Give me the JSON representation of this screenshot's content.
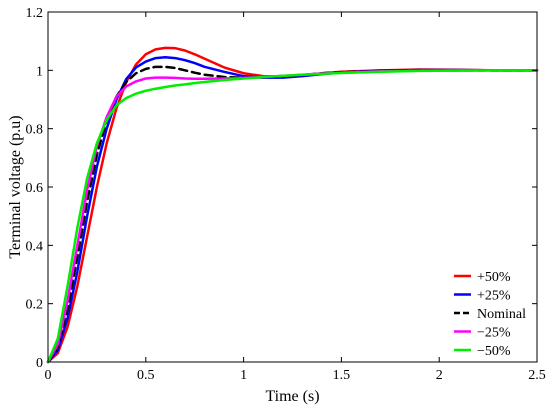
{
  "chart_data": {
    "type": "line",
    "title": "",
    "xlabel": "Time (s)",
    "ylabel": "Terminal voltage (p.u)",
    "xlim": [
      0,
      2.5
    ],
    "ylim": [
      0,
      1.2
    ],
    "xticks": [
      0,
      0.5,
      1,
      1.5,
      2,
      2.5
    ],
    "xtick_labels": [
      "0",
      "0.5",
      "1",
      "1.5",
      "2",
      "2.5"
    ],
    "yticks": [
      0,
      0.2,
      0.4,
      0.6,
      0.8,
      1,
      1.2
    ],
    "ytick_labels": [
      "0",
      "0.2",
      "0.4",
      "0.6",
      "0.8",
      "1",
      "1.2"
    ],
    "grid": false,
    "legend_position": "bottom-right",
    "series": [
      {
        "name": "+50%",
        "color": "#ff0000",
        "dash": "solid",
        "x": [
          0,
          0.05,
          0.1,
          0.15,
          0.2,
          0.25,
          0.3,
          0.35,
          0.4,
          0.45,
          0.5,
          0.55,
          0.6,
          0.65,
          0.7,
          0.75,
          0.8,
          0.9,
          1.0,
          1.1,
          1.2,
          1.3,
          1.4,
          1.5,
          1.7,
          1.9,
          2.1,
          2.3,
          2.5
        ],
        "y": [
          0,
          0.03,
          0.12,
          0.26,
          0.43,
          0.6,
          0.75,
          0.87,
          0.96,
          1.02,
          1.055,
          1.072,
          1.077,
          1.076,
          1.068,
          1.055,
          1.04,
          1.01,
          0.99,
          0.98,
          0.978,
          0.982,
          0.99,
          0.995,
          1.0,
          1.003,
          1.002,
          1.0,
          1.0
        ]
      },
      {
        "name": "+25%",
        "color": "#0000ff",
        "dash": "solid",
        "x": [
          0,
          0.05,
          0.1,
          0.15,
          0.2,
          0.25,
          0.3,
          0.35,
          0.4,
          0.45,
          0.5,
          0.55,
          0.6,
          0.65,
          0.7,
          0.75,
          0.8,
          0.9,
          1.0,
          1.1,
          1.2,
          1.3,
          1.4,
          1.5,
          1.7,
          1.9,
          2.1,
          2.3,
          2.5
        ],
        "y": [
          0,
          0.04,
          0.15,
          0.31,
          0.5,
          0.67,
          0.8,
          0.9,
          0.97,
          1.01,
          1.03,
          1.042,
          1.045,
          1.042,
          1.035,
          1.025,
          1.012,
          0.995,
          0.98,
          0.975,
          0.975,
          0.98,
          0.987,
          0.993,
          0.999,
          1.001,
          1.001,
          1.0,
          1.0
        ]
      },
      {
        "name": "Nominal",
        "color": "#000000",
        "dash": "dash",
        "x": [
          0,
          0.05,
          0.1,
          0.15,
          0.2,
          0.25,
          0.3,
          0.35,
          0.4,
          0.45,
          0.5,
          0.55,
          0.6,
          0.65,
          0.7,
          0.75,
          0.8,
          0.9,
          1.0,
          1.1,
          1.2,
          1.3,
          1.4,
          1.5,
          1.7,
          1.9,
          2.1,
          2.3,
          2.5
        ],
        "y": [
          0,
          0.05,
          0.18,
          0.36,
          0.55,
          0.71,
          0.83,
          0.91,
          0.96,
          0.99,
          1.005,
          1.012,
          1.012,
          1.008,
          1.0,
          0.992,
          0.985,
          0.977,
          0.975,
          0.976,
          0.979,
          0.984,
          0.99,
          0.994,
          0.998,
          1.0,
          1.0,
          1.0,
          1.0
        ]
      },
      {
        "name": "−25%",
        "color": "#ff00ff",
        "dash": "solid",
        "x": [
          0,
          0.05,
          0.1,
          0.15,
          0.2,
          0.25,
          0.3,
          0.35,
          0.4,
          0.45,
          0.5,
          0.55,
          0.6,
          0.65,
          0.7,
          0.75,
          0.8,
          0.9,
          1.0,
          1.1,
          1.2,
          1.3,
          1.4,
          1.5,
          1.7,
          1.9,
          2.1,
          2.3,
          2.5
        ],
        "y": [
          0,
          0.06,
          0.21,
          0.4,
          0.59,
          0.74,
          0.84,
          0.91,
          0.945,
          0.962,
          0.972,
          0.975,
          0.975,
          0.974,
          0.972,
          0.971,
          0.971,
          0.972,
          0.974,
          0.977,
          0.981,
          0.985,
          0.989,
          0.992,
          0.997,
          0.999,
          1.0,
          1.0,
          1.0
        ]
      },
      {
        "name": "−50%",
        "color": "#00ee00",
        "dash": "solid",
        "x": [
          0,
          0.05,
          0.1,
          0.15,
          0.2,
          0.25,
          0.3,
          0.35,
          0.4,
          0.45,
          0.5,
          0.55,
          0.6,
          0.65,
          0.7,
          0.75,
          0.8,
          0.9,
          1.0,
          1.1,
          1.2,
          1.3,
          1.4,
          1.5,
          1.7,
          1.9,
          2.1,
          2.3,
          2.5
        ],
        "y": [
          0,
          0.08,
          0.26,
          0.46,
          0.63,
          0.75,
          0.83,
          0.88,
          0.905,
          0.92,
          0.93,
          0.937,
          0.943,
          0.948,
          0.952,
          0.956,
          0.96,
          0.967,
          0.972,
          0.977,
          0.981,
          0.985,
          0.988,
          0.991,
          0.995,
          0.998,
          0.999,
          1.0,
          1.0
        ]
      }
    ]
  }
}
